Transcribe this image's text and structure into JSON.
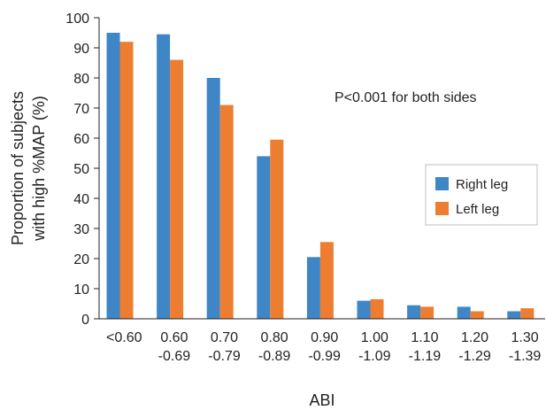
{
  "chart_data": {
    "type": "bar",
    "categories": [
      [
        "<0.60",
        ""
      ],
      [
        "0.60",
        "-0.69"
      ],
      [
        "0.70",
        "-0.79"
      ],
      [
        "0.80",
        "-0.89"
      ],
      [
        "0.90",
        "-0.99"
      ],
      [
        "1.00",
        "-1.09"
      ],
      [
        "1.10",
        "-1.19"
      ],
      [
        "1.20",
        "-1.29"
      ],
      [
        "1.30",
        "-1.39"
      ]
    ],
    "series": [
      {
        "name": "Right leg",
        "color": "#3f86c7",
        "values": [
          95,
          94.5,
          80,
          54,
          20.5,
          6,
          4.5,
          4,
          2.5
        ]
      },
      {
        "name": "Left leg",
        "color": "#ed7d31",
        "values": [
          92,
          86,
          71,
          59.5,
          25.5,
          6.5,
          4,
          2.5,
          3.5
        ]
      }
    ],
    "ylim": [
      0,
      100
    ],
    "yticks": [
      0,
      10,
      20,
      30,
      40,
      50,
      60,
      70,
      80,
      90,
      100
    ],
    "xlabel": "ABI",
    "ylabel_lines": [
      "Proportion of subjects",
      "with high %MAP (%)"
    ],
    "annotation": "P<0.001 for both sides",
    "legend_placement": "right",
    "grid": false
  }
}
